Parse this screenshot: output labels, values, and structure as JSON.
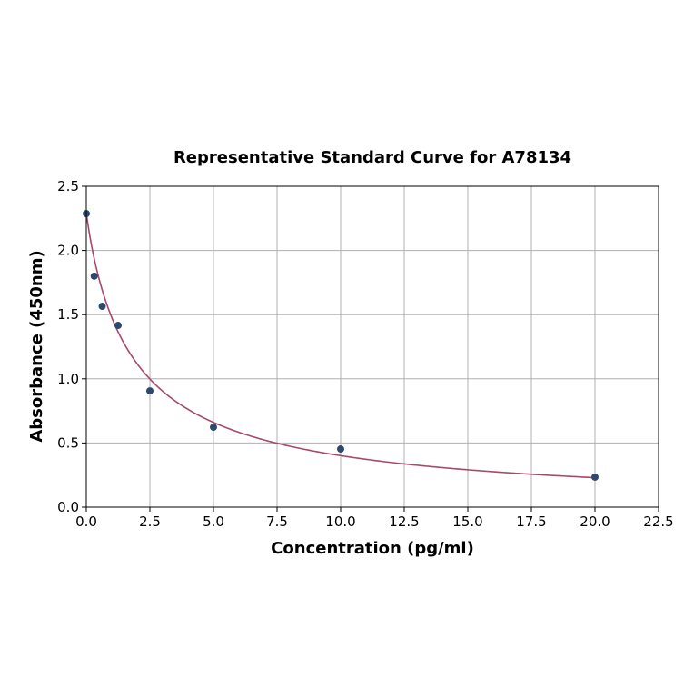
{
  "chart_data": {
    "type": "scatter",
    "title": "Representative Standard Curve for A78134",
    "xlabel": "Concentration (pg/ml)",
    "ylabel": "Absorbance (450nm)",
    "xlim": [
      0,
      22.5
    ],
    "ylim": [
      0,
      2.5
    ],
    "xticks": [
      "0.0",
      "2.5",
      "5.0",
      "7.5",
      "10.0",
      "12.5",
      "15.0",
      "17.5",
      "20.0",
      "22.5"
    ],
    "yticks": [
      "0.0",
      "0.5",
      "1.0",
      "1.5",
      "2.0",
      "2.5"
    ],
    "grid": true,
    "points": [
      {
        "x": 0,
        "y": 2.287
      },
      {
        "x": 0.3125,
        "y": 1.8
      },
      {
        "x": 0.625,
        "y": 1.565
      },
      {
        "x": 1.25,
        "y": 1.416
      },
      {
        "x": 2.5,
        "y": 0.906
      },
      {
        "x": 5,
        "y": 0.623
      },
      {
        "x": 10,
        "y": 0.453
      },
      {
        "x": 20,
        "y": 0.234
      }
    ],
    "colors": {
      "points": "#2d4a6e",
      "curve": "#a8486a",
      "grid": "#b0b0b0"
    }
  }
}
